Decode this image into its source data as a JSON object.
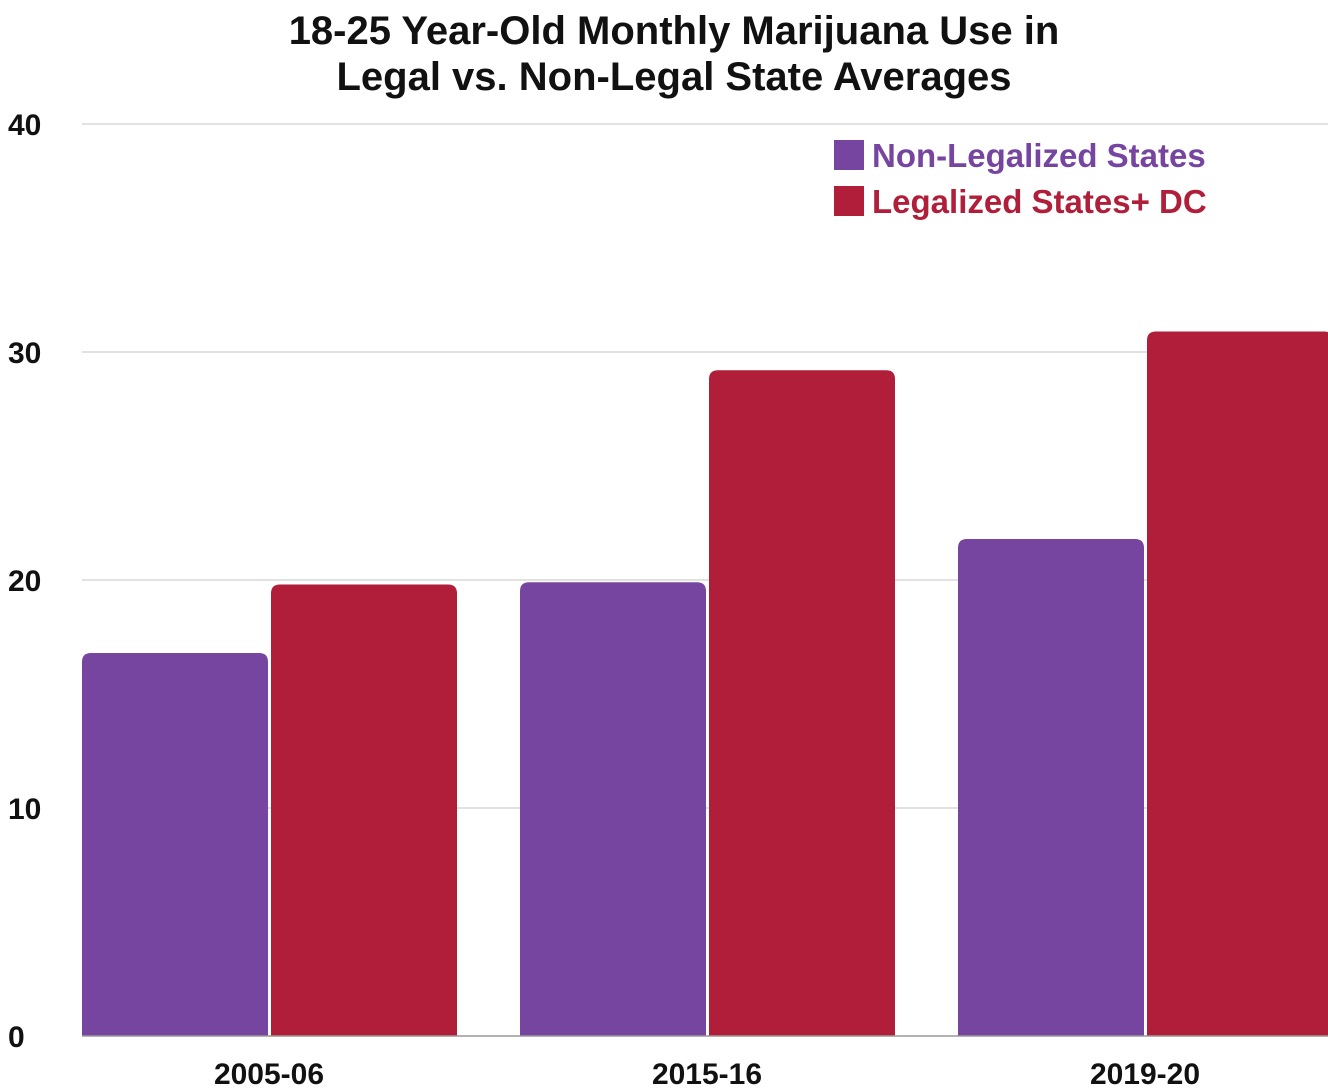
{
  "chart_data": {
    "type": "bar",
    "title_lines": [
      "18-25 Year-Old Monthly Marijuana Use in",
      "Legal vs. Non-Legal State Averages"
    ],
    "categories": [
      "2005-06",
      "2015-16",
      "2019-20"
    ],
    "series": [
      {
        "name": "Non-Legalized States",
        "color": "#7645a0",
        "values": [
          16.8,
          19.9,
          21.8
        ]
      },
      {
        "name": "Legalized States+ DC",
        "color": "#b01e39",
        "values": [
          19.8,
          29.2,
          30.9
        ]
      }
    ],
    "xlabel": "",
    "ylabel": "",
    "ylim": [
      0,
      40
    ],
    "yticks": [
      "0",
      "10",
      "20",
      "30",
      "40"
    ],
    "grid": true,
    "legend_position": "top-right"
  }
}
